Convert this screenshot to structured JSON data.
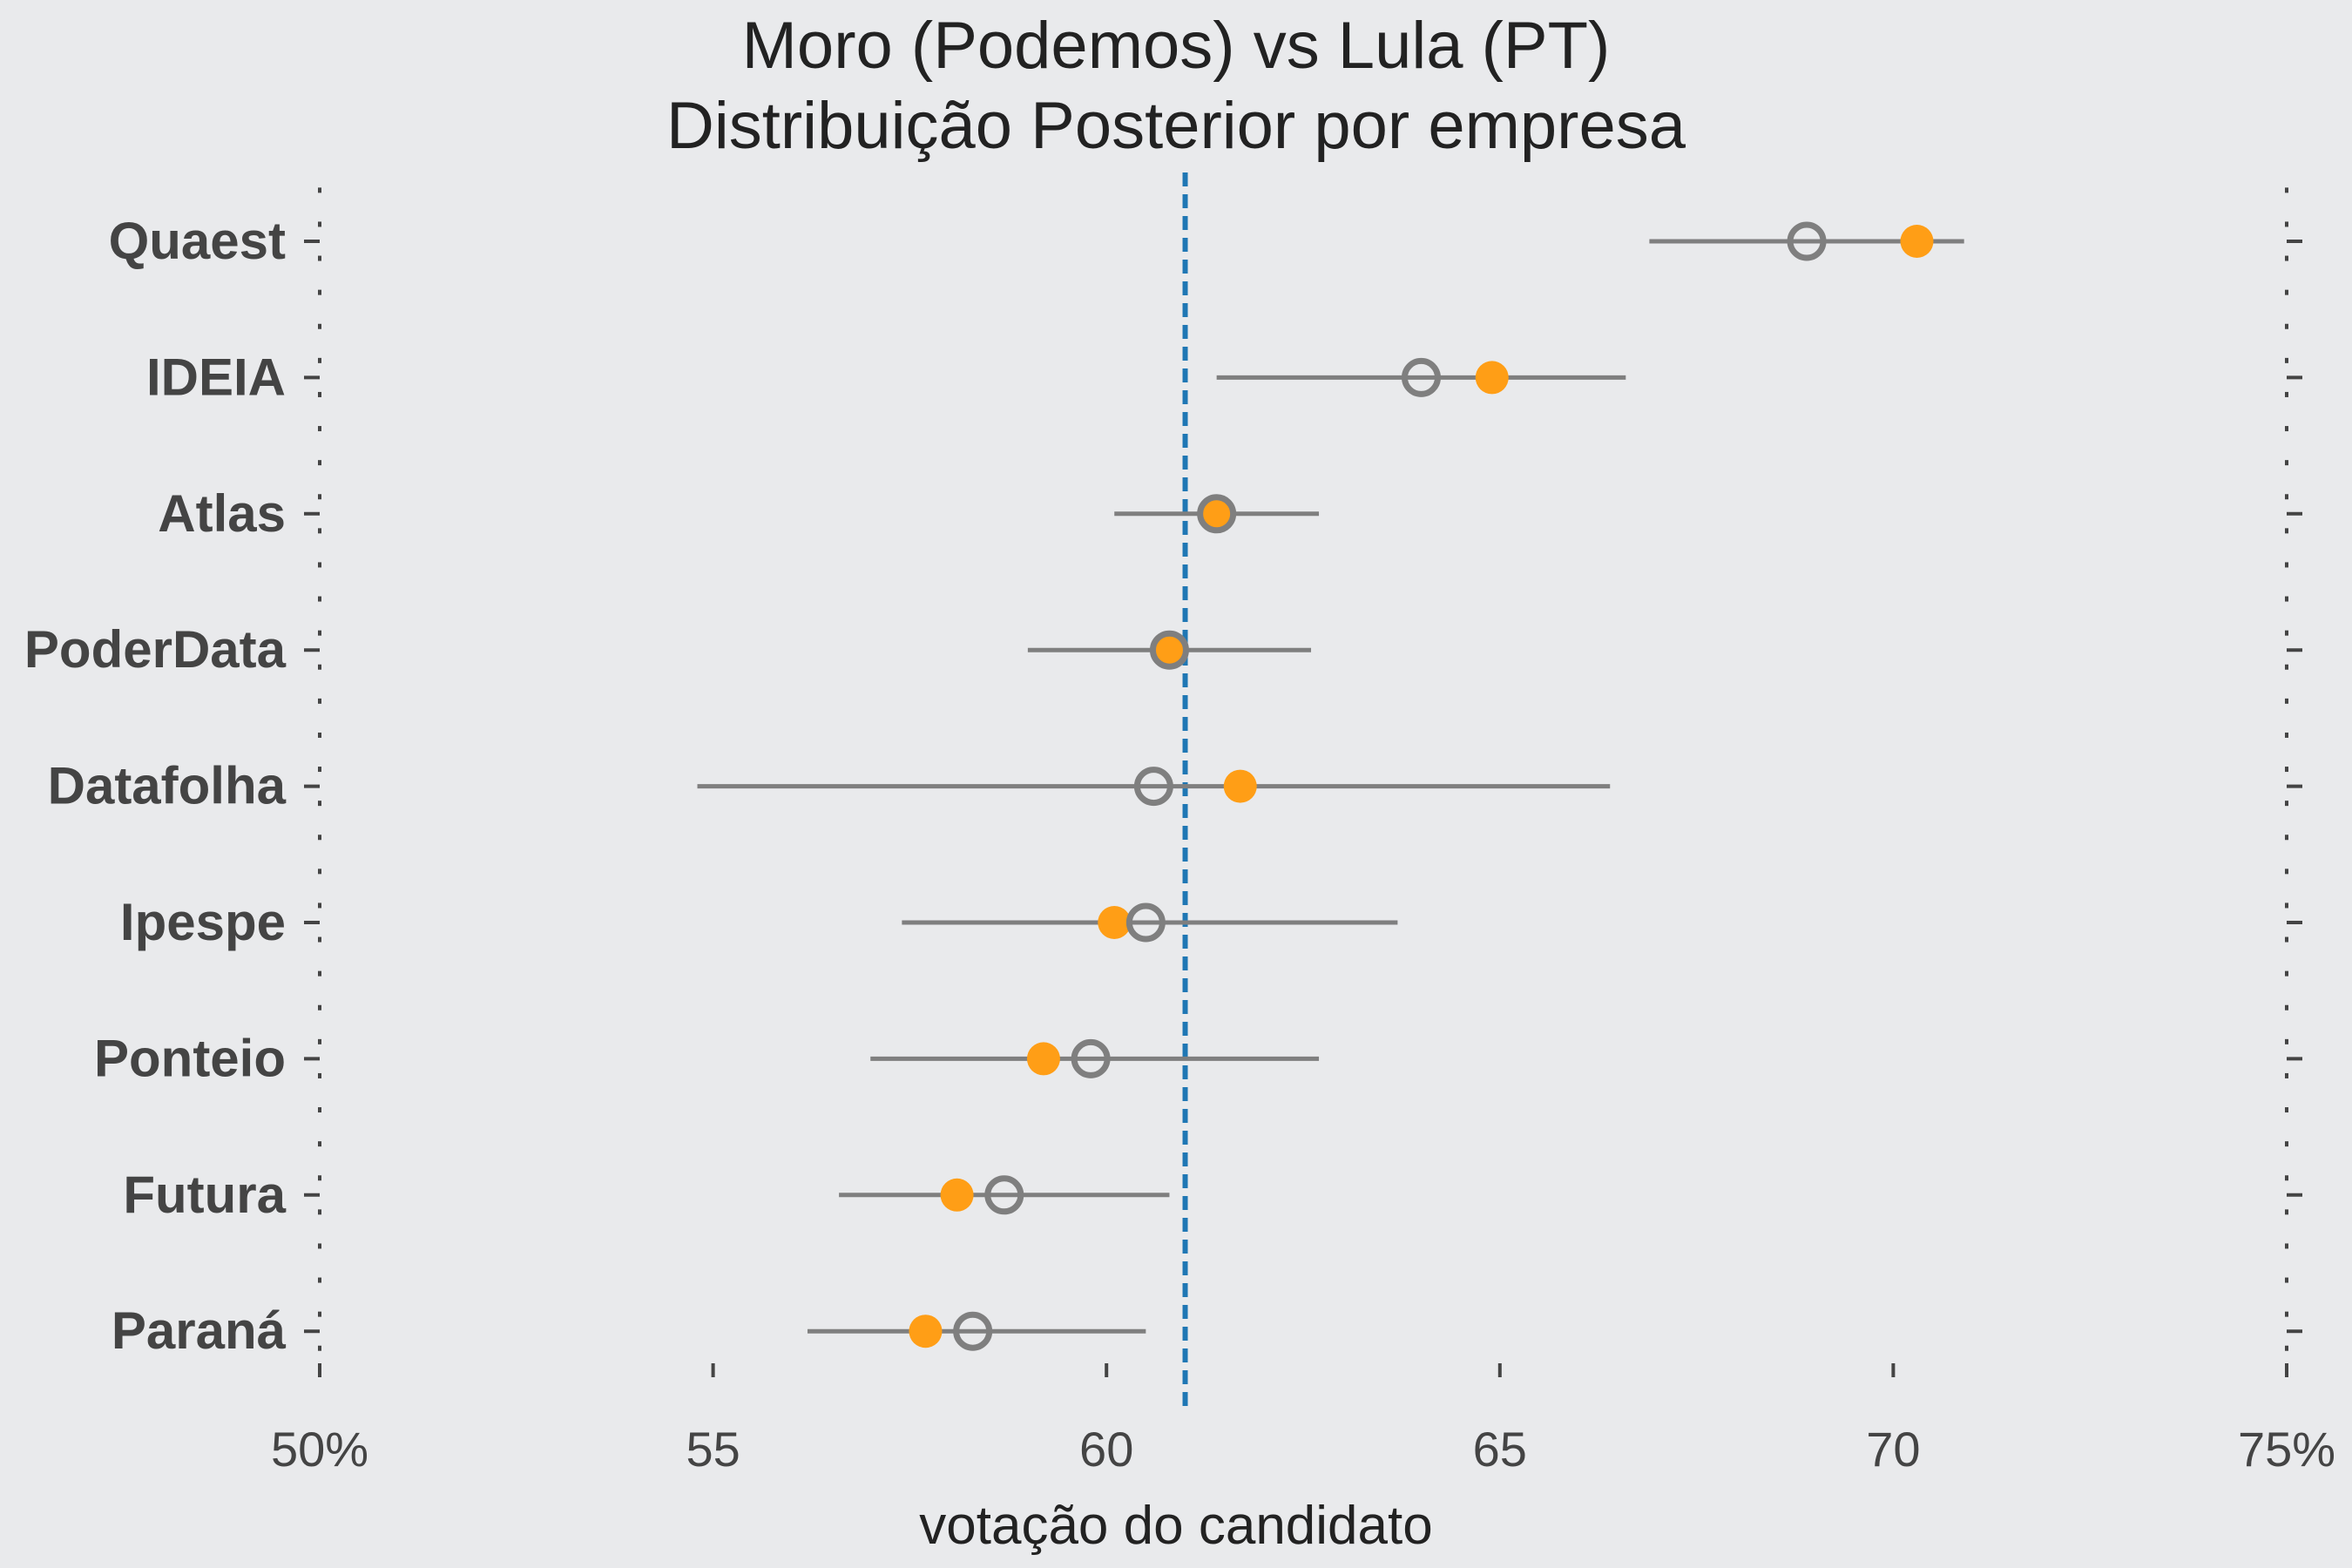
{
  "chart_data": {
    "type": "scatter",
    "title": "Moro (Podemos) vs Lula (PT)",
    "subtitle": "Distribuição Posterior por empresa",
    "xlabel": "votação do candidato",
    "xlim": [
      50,
      75
    ],
    "x_ticks": [
      {
        "value": 50,
        "label": "50%"
      },
      {
        "value": 55,
        "label": "55"
      },
      {
        "value": 60,
        "label": "60"
      },
      {
        "value": 65,
        "label": "65"
      },
      {
        "value": 70,
        "label": "70"
      },
      {
        "value": 75,
        "label": "75%"
      }
    ],
    "reference_line": {
      "value": 61.0,
      "color": "#1f77b4",
      "style": "dashed"
    },
    "colors": {
      "observed": "#ff9e16",
      "posterior": "#7f7f7f",
      "interval": "#7f7f7f"
    },
    "categories": [
      "Quaest",
      "IDEIA",
      "Atlas",
      "PoderData",
      "Datafolha",
      "Ipespe",
      "Ponteio",
      "Futura",
      "Paraná"
    ],
    "series": [
      {
        "values": [
          70.3,
          64.9,
          61.4,
          60.8,
          61.7,
          60.1,
          59.2,
          58.1,
          57.7
        ]
      },
      {
        "values": [
          68.9,
          64.0,
          61.4,
          60.8,
          60.6,
          60.5,
          59.8,
          58.7,
          58.3
        ]
      }
    ],
    "intervals": [
      [
        66.9,
        70.9
      ],
      [
        61.4,
        66.6
      ],
      [
        60.1,
        62.7
      ],
      [
        59.0,
        62.6
      ],
      [
        54.8,
        66.4
      ],
      [
        57.4,
        63.7
      ],
      [
        57.0,
        62.7
      ],
      [
        56.6,
        60.8
      ],
      [
        56.2,
        60.5
      ]
    ]
  }
}
